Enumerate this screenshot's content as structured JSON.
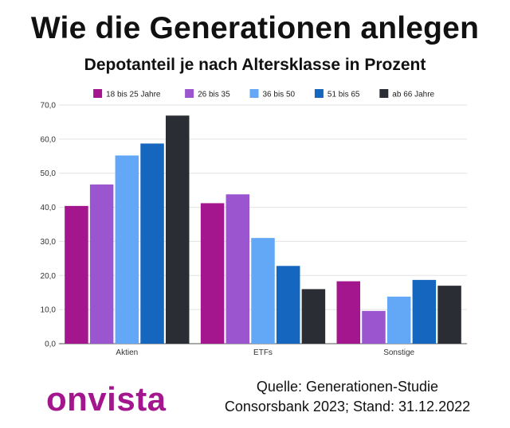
{
  "header": {
    "title": "Wie die Generationen anlegen",
    "subtitle": "Depotanteil je nach Altersklasse in Prozent"
  },
  "footer": {
    "logo": "onvista",
    "source_line1": "Quelle: Generationen-Studie",
    "source_line2": "Consorsbank 2023; Stand: 31.12.2022"
  },
  "chart_data": {
    "type": "bar",
    "categories": [
      "Aktien",
      "ETFs",
      "Sonstige"
    ],
    "series": [
      {
        "name": "18 bis 25 Jahre",
        "color": "#a4168d",
        "values": [
          40.4,
          41.2,
          18.3
        ]
      },
      {
        "name": "26 bis 35",
        "color": "#9b55cf",
        "values": [
          46.7,
          43.8,
          9.6
        ]
      },
      {
        "name": "36 bis 50",
        "color": "#62a8f7",
        "values": [
          55.2,
          31.0,
          13.8
        ]
      },
      {
        "name": "51 bis 65",
        "color": "#1466be",
        "values": [
          58.7,
          22.8,
          18.7
        ]
      },
      {
        "name": "ab 66 Jahre",
        "color": "#2b2d35",
        "values": [
          66.9,
          16.0,
          17.0
        ]
      }
    ],
    "y_ticks": [
      "0,0",
      "10,0",
      "20,0",
      "30,0",
      "40,0",
      "50,0",
      "60,0",
      "70,0"
    ],
    "ylim": [
      0,
      70
    ],
    "grid": true,
    "legend_position": "top"
  }
}
